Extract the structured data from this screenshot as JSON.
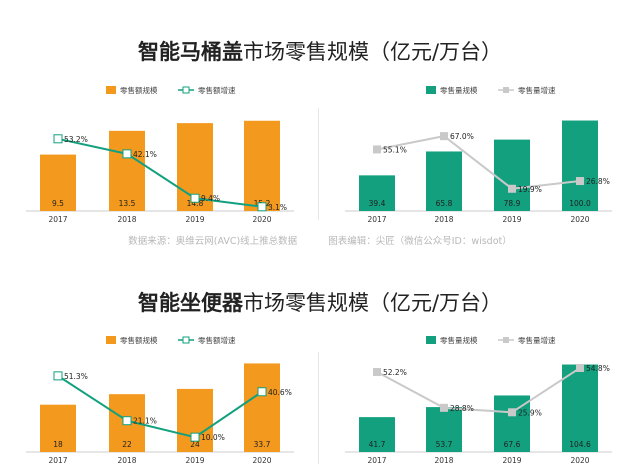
{
  "sections": [
    {
      "title_bold": "智能马桶盖",
      "title_rest": "市场零售规模（亿元/万台）",
      "source_left": "数据来源：奥维云网(AVC)线上推总数据",
      "source_right": "图表编辑：尖匠（微信公众号ID：wisdot）"
    },
    {
      "title_bold": "智能坐便器",
      "title_rest": "市场零售规模（亿元/万台）"
    }
  ],
  "colors": {
    "orange": "#F39A1E",
    "teal": "#12A07E",
    "gray": "#C9C9C9",
    "teal_line": "#12A07E"
  },
  "chart_data": [
    {
      "type": "bar",
      "section": 0,
      "panel": "left",
      "categories": [
        "2017",
        "2018",
        "2019",
        "2020"
      ],
      "series": [
        {
          "name": "零售额规模",
          "kind": "bar",
          "values": [
            9.5,
            13.5,
            14.8,
            15.2
          ],
          "labels": [
            "9.5",
            "13.5",
            "14.8",
            "15.2"
          ]
        },
        {
          "name": "零售额增速",
          "kind": "line",
          "values": [
            53.2,
            42.1,
            9.4,
            3.1
          ],
          "labels": [
            "53.2%",
            "42.1%",
            "9.4%",
            "3.1%"
          ]
        }
      ],
      "bar_ylim": [
        0,
        16
      ],
      "line_ylim": [
        0,
        70
      ],
      "legend": "top"
    },
    {
      "type": "bar",
      "section": 0,
      "panel": "right",
      "categories": [
        "2017",
        "2018",
        "2019",
        "2020"
      ],
      "series": [
        {
          "name": "零售量规模",
          "kind": "bar",
          "values": [
            39.4,
            65.8,
            78.9,
            100.0
          ],
          "labels": [
            "39.4",
            "65.8",
            "78.9",
            "100.0"
          ]
        },
        {
          "name": "零售量增速",
          "kind": "line",
          "values": [
            55.1,
            67.0,
            19.9,
            26.8
          ],
          "labels": [
            "55.1%",
            "67.0%",
            "19.9%",
            "26.8%"
          ]
        }
      ],
      "bar_ylim": [
        0,
        105
      ],
      "line_ylim": [
        0,
        85
      ],
      "legend": "top"
    },
    {
      "type": "bar",
      "section": 1,
      "panel": "left",
      "categories": [
        "2017",
        "2018",
        "2019",
        "2020"
      ],
      "series": [
        {
          "name": "零售额规模",
          "kind": "bar",
          "values": [
            18,
            22,
            24,
            33.7
          ],
          "labels": [
            "18",
            "22",
            "24",
            "33.7"
          ]
        },
        {
          "name": "零售额增速",
          "kind": "line",
          "values": [
            51.3,
            21.1,
            10.0,
            40.6
          ],
          "labels": [
            "51.3%",
            "21.1%",
            "10.0%",
            "40.6%"
          ]
        }
      ],
      "bar_ylim": [
        0,
        35
      ],
      "line_ylim": [
        0,
        62
      ],
      "legend": "top"
    },
    {
      "type": "bar",
      "section": 1,
      "panel": "right",
      "categories": [
        "2017",
        "2018",
        "2019",
        "2020"
      ],
      "series": [
        {
          "name": "零售量规模",
          "kind": "bar",
          "values": [
            41.7,
            53.7,
            67.6,
            104.6
          ],
          "labels": [
            "41.7",
            "53.7",
            "67.6",
            "104.6"
          ]
        },
        {
          "name": "零售量增速",
          "kind": "line",
          "values": [
            52.2,
            28.8,
            25.9,
            54.8
          ],
          "labels": [
            "52.2%",
            "28.8%",
            "25.9%",
            "54.8%"
          ]
        }
      ],
      "bar_ylim": [
        0,
        110
      ],
      "line_ylim": [
        0,
        60
      ],
      "legend": "top"
    }
  ]
}
